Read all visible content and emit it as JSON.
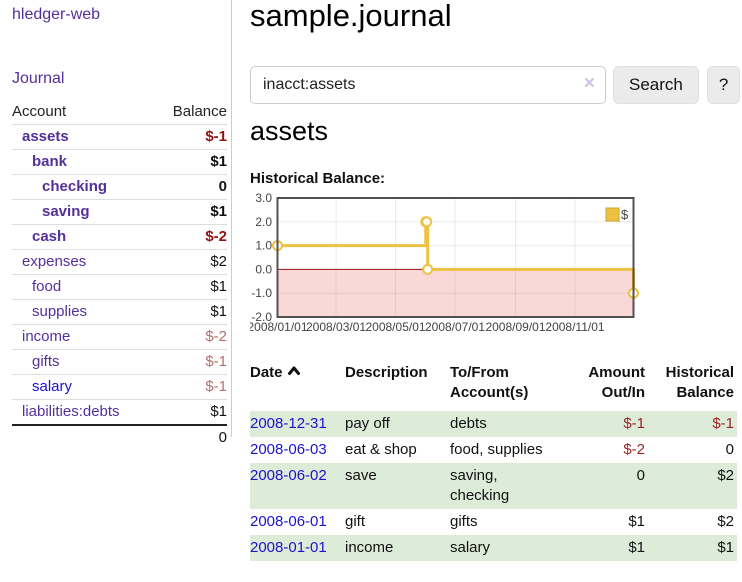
{
  "sidebar": {
    "brand": "hledger-web",
    "nav_journal": "Journal",
    "accounts_header": {
      "account": "Account",
      "balance": "Balance"
    },
    "accounts": [
      {
        "name": "assets",
        "depth": 1,
        "bold": true,
        "balance": "$-1",
        "balance_style": "neg-strong"
      },
      {
        "name": "bank",
        "depth": 2,
        "bold": true,
        "balance": "$1",
        "balance_style": ""
      },
      {
        "name": "checking",
        "depth": 3,
        "bold": true,
        "balance": "0",
        "balance_style": ""
      },
      {
        "name": "saving",
        "depth": 3,
        "bold": true,
        "balance": "$1",
        "balance_style": ""
      },
      {
        "name": "cash",
        "depth": 2,
        "bold": true,
        "balance": "$-2",
        "balance_style": "neg-strong"
      },
      {
        "name": "expenses",
        "depth": 1,
        "bold": false,
        "balance": "$2",
        "balance_style": ""
      },
      {
        "name": "food",
        "depth": 2,
        "bold": false,
        "balance": "$1",
        "balance_style": ""
      },
      {
        "name": "supplies",
        "depth": 2,
        "bold": false,
        "balance": "$1",
        "balance_style": ""
      },
      {
        "name": "income",
        "depth": 1,
        "bold": false,
        "balance": "$-2",
        "balance_style": "neg-muted"
      },
      {
        "name": "gifts",
        "depth": 2,
        "bold": false,
        "balance": "$-1",
        "balance_style": "neg-muted"
      },
      {
        "name": "salary",
        "depth": 2,
        "bold": false,
        "balance": "$-1",
        "balance_style": "neg-muted",
        "link_style": "blue"
      },
      {
        "name": "liabilities:debts",
        "depth": 1,
        "bold": false,
        "balance": "$1",
        "balance_style": ""
      }
    ],
    "total": "0"
  },
  "header": {
    "title": "sample.journal"
  },
  "search": {
    "value": "inacct:assets",
    "clear_glyph": "×",
    "button_label": "Search",
    "help_label": "?"
  },
  "main": {
    "account_heading": "assets",
    "chart_label": "Historical Balance:",
    "table": {
      "headers": {
        "date": "Date",
        "description": "Description",
        "tofrom": "To/From\nAccount(s)",
        "amount": "Amount\nOut/In",
        "historical": "Historical\nBalance"
      },
      "rows": [
        {
          "date": "2008-12-31",
          "description": "pay off",
          "accounts": "debts",
          "amount": "$-1",
          "amount_negative": true,
          "historical": "$-1",
          "historical_negative": true
        },
        {
          "date": "2008-06-03",
          "description": "eat & shop",
          "accounts": "food, supplies",
          "amount": "$-2",
          "amount_negative": true,
          "historical": "0",
          "historical_negative": false
        },
        {
          "date": "2008-06-02",
          "description": "save",
          "accounts": "saving,\nchecking",
          "amount": "0",
          "amount_negative": false,
          "historical": "$2",
          "historical_negative": false
        },
        {
          "date": "2008-06-01",
          "description": "gift",
          "accounts": "gifts",
          "amount": "$1",
          "amount_negative": false,
          "historical": "$2",
          "historical_negative": false
        },
        {
          "date": "2008-01-01",
          "description": "income",
          "accounts": "salary",
          "amount": "$1",
          "amount_negative": false,
          "historical": "$1",
          "historical_negative": false
        }
      ]
    }
  },
  "chart_data": {
    "type": "line",
    "title": "Historical Balance:",
    "step": true,
    "series": [
      {
        "name": "$",
        "color": "#edc240",
        "points": [
          {
            "date": "2008-01-01",
            "value": 1
          },
          {
            "date": "2008-06-01",
            "value": 2
          },
          {
            "date": "2008-06-02",
            "value": 2
          },
          {
            "date": "2008-06-03",
            "value": 0
          },
          {
            "date": "2008-12-31",
            "value": -1
          }
        ]
      }
    ],
    "x_range": [
      "2008-01-01",
      "2008-12-31"
    ],
    "ylim": [
      -2,
      3
    ],
    "y_ticks": [
      3.0,
      2.0,
      1.0,
      0.0,
      -1.0,
      -2.0
    ],
    "x_ticks": [
      {
        "date": "2008-01-01",
        "label": "2008/01/01"
      },
      {
        "date": "2008-03-01",
        "label": "2008/03/01"
      },
      {
        "date": "2008-05-01",
        "label": "2008/05/01"
      },
      {
        "date": "2008-07-01",
        "label": "2008/07/01"
      },
      {
        "date": "2008-09-01",
        "label": "2008/09/01"
      },
      {
        "date": "2008-11-01",
        "label": "2008/11/01"
      }
    ],
    "legend_position": "top-right",
    "grid": true,
    "negative_region_color": "#fbd8d8",
    "zero_line_color": "#a11111",
    "colors": {
      "line": "#edc240",
      "marker_fill": "#ffffff",
      "border": "#515151"
    }
  }
}
